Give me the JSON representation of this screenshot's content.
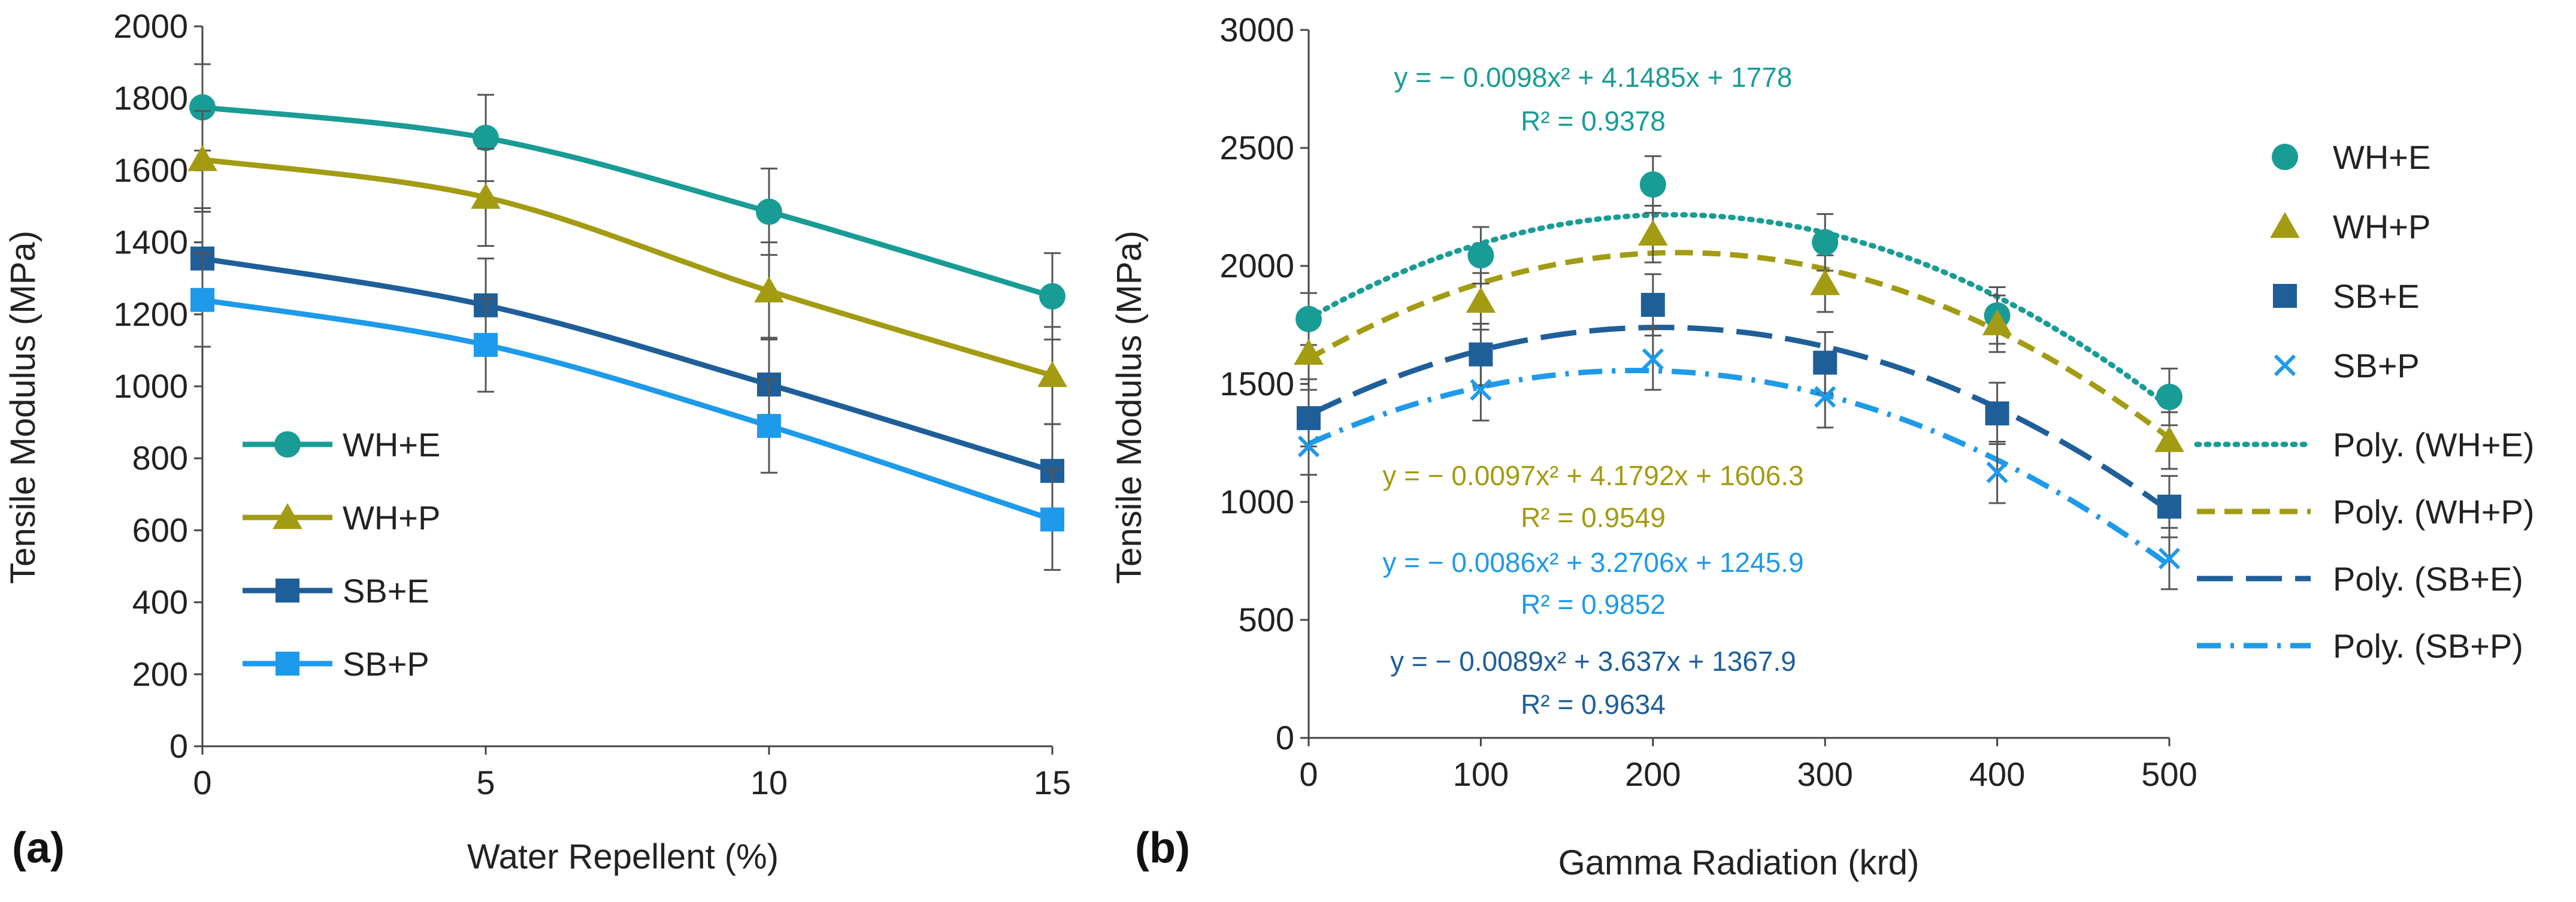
{
  "chart_data": [
    {
      "panel_label": "(a)",
      "type": "line",
      "xlabel": "Water Repellent (%)",
      "ylabel": "Tensile Modulus (MPa)",
      "x": [
        0,
        5,
        10,
        15
      ],
      "x_ticks": [
        "0",
        "5",
        "10",
        "15"
      ],
      "xlim": [
        0,
        15
      ],
      "y_ticks": [
        "0",
        "200",
        "400",
        "600",
        "800",
        "1000",
        "1200",
        "1400",
        "1600",
        "1800",
        "2000"
      ],
      "ylim": [
        0,
        2000
      ],
      "legend_position": "bottom-left",
      "series": [
        {
          "name": "WH+E",
          "color": "#1a9c96",
          "marker": "circle",
          "values": [
            1775,
            1690,
            1485,
            1250
          ],
          "errors": [
            120,
            120,
            120,
            120
          ]
        },
        {
          "name": "WH+P",
          "color": "#a39b12",
          "marker": "triangle",
          "values": [
            1630,
            1525,
            1265,
            1030
          ],
          "errors": [
            135,
            135,
            135,
            135
          ]
        },
        {
          "name": "SB+E",
          "color": "#1f5f99",
          "marker": "square",
          "values": [
            1355,
            1225,
            1005,
            765
          ],
          "errors": [
            130,
            130,
            130,
            130
          ]
        },
        {
          "name": "SB+P",
          "color": "#1e9aea",
          "marker": "square",
          "values": [
            1240,
            1115,
            890,
            630
          ],
          "errors": [
            130,
            130,
            130,
            140
          ]
        }
      ]
    },
    {
      "panel_label": "(b)",
      "type": "scatter",
      "xlabel": "Gamma Radiation (krd)",
      "ylabel": "Tensile Modulus (MPa)",
      "x": [
        0,
        100,
        200,
        300,
        400,
        500
      ],
      "x_ticks": [
        "0",
        "100",
        "200",
        "300",
        "400",
        "500"
      ],
      "xlim": [
        0,
        500
      ],
      "y_ticks": [
        "0",
        "500",
        "1000",
        "1500",
        "2000",
        "2500",
        "3000"
      ],
      "ylim": [
        0,
        3000
      ],
      "legend_position": "right",
      "series": [
        {
          "name": "WH+E",
          "color": "#1a9c96",
          "marker": "circle",
          "values": [
            1775,
            2045,
            2345,
            2100,
            1790,
            1445
          ],
          "errors": [
            110,
            120,
            120,
            120,
            120,
            120
          ],
          "trend": {
            "name": "Poly. (WH+E)",
            "style": "dotted",
            "a": -0.0098,
            "b": 4.1485,
            "c": 1778,
            "equation": "y = − 0.0098x² + 4.1485x + 1778",
            "r2": "R² = 0.9378"
          }
        },
        {
          "name": "WH+P",
          "color": "#a39b12",
          "marker": "triangle",
          "values": [
            1630,
            1850,
            2135,
            1925,
            1755,
            1260
          ],
          "errors": [
            110,
            120,
            120,
            120,
            120,
            120
          ],
          "trend": {
            "name": "Poly. (WH+P)",
            "style": "dashed",
            "a": -0.0097,
            "b": 4.1792,
            "c": 1606.3,
            "equation": "y = − 0.0097x² + 4.1792x + 1606.3",
            "r2": "R² = 0.9549"
          }
        },
        {
          "name": "SB+E",
          "color": "#1f5f99",
          "marker": "square",
          "values": [
            1355,
            1625,
            1835,
            1590,
            1375,
            980
          ],
          "errors": [
            120,
            130,
            130,
            130,
            130,
            130
          ],
          "trend": {
            "name": "Poly. (SB+E)",
            "style": "longdash",
            "a": -0.0089,
            "b": 3.637,
            "c": 1367.9,
            "equation": "y = − 0.0089x² + 3.637x + 1367.9",
            "r2": "R² = 0.9634"
          }
        },
        {
          "name": "SB+P",
          "color": "#1e9aea",
          "marker": "x",
          "values": [
            1235,
            1475,
            1605,
            1445,
            1125,
            760
          ],
          "errors": [
            120,
            130,
            130,
            130,
            130,
            130
          ],
          "trend": {
            "name": "Poly. (SB+P)",
            "style": "dashdot",
            "a": -0.0086,
            "b": 3.2706,
            "c": 1245.9,
            "equation": "y = − 0.0086x² + 3.2706x + 1245.9",
            "r2": "R² = 0.9852"
          }
        }
      ]
    }
  ]
}
